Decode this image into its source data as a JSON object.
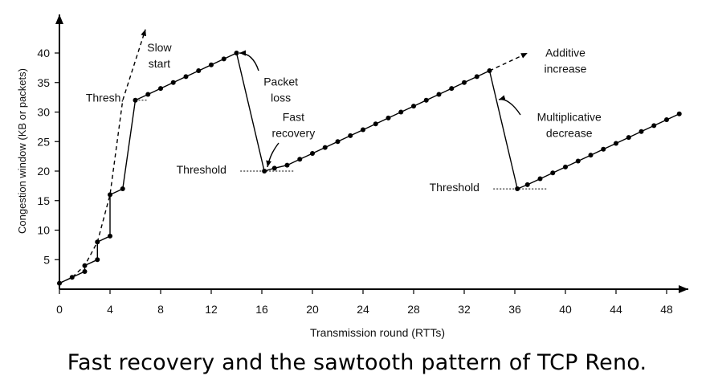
{
  "chart_data": {
    "type": "line",
    "xlabel": "Transmission round (RTTs)",
    "ylabel": "Congestion window  (KB or packets)",
    "xlim": [
      0,
      49
    ],
    "ylim": [
      0,
      42
    ],
    "xticks": [
      0,
      4,
      8,
      12,
      16,
      20,
      24,
      28,
      32,
      36,
      40,
      44,
      48
    ],
    "yticks": [
      5,
      10,
      15,
      20,
      25,
      30,
      35,
      40
    ],
    "series": [
      {
        "style": "solid-with-dots",
        "points": [
          [
            0,
            1
          ],
          [
            1,
            2
          ],
          [
            2,
            3
          ],
          [
            2,
            4
          ],
          [
            3,
            5
          ],
          [
            3,
            8
          ],
          [
            4,
            9
          ],
          [
            4,
            16
          ],
          [
            5,
            17
          ],
          [
            6,
            32
          ],
          [
            7,
            33
          ],
          [
            8,
            34
          ],
          [
            9,
            35
          ],
          [
            10,
            36
          ],
          [
            11,
            37
          ],
          [
            12,
            38
          ],
          [
            13,
            39
          ],
          [
            14,
            40
          ],
          [
            16.2,
            20
          ],
          [
            17,
            20.5
          ],
          [
            18,
            21
          ],
          [
            19,
            22
          ],
          [
            20,
            23
          ],
          [
            21,
            24
          ],
          [
            22,
            25
          ],
          [
            23,
            26
          ],
          [
            24,
            27
          ],
          [
            25,
            28
          ],
          [
            26,
            29
          ],
          [
            27,
            30
          ],
          [
            28,
            31
          ],
          [
            29,
            32
          ],
          [
            30,
            33
          ],
          [
            31,
            34
          ],
          [
            32,
            35
          ],
          [
            33,
            36
          ],
          [
            34,
            37
          ],
          [
            36.2,
            17
          ],
          [
            37,
            17.7
          ],
          [
            38,
            18.7
          ],
          [
            39,
            19.7
          ],
          [
            40,
            20.7
          ],
          [
            41,
            21.7
          ],
          [
            42,
            22.7
          ],
          [
            43,
            23.7
          ],
          [
            44,
            24.7
          ],
          [
            45,
            25.7
          ],
          [
            46,
            26.7
          ],
          [
            47,
            27.7
          ],
          [
            48,
            28.7
          ],
          [
            49,
            29.7
          ]
        ]
      },
      {
        "style": "dashed",
        "points": [
          [
            0,
            1
          ],
          [
            1,
            2
          ],
          [
            2,
            4
          ],
          [
            3,
            8
          ],
          [
            4,
            16
          ],
          [
            5,
            32
          ],
          [
            6.8,
            44
          ]
        ]
      },
      {
        "style": "dashed",
        "points": [
          [
            34,
            37
          ],
          [
            37,
            40
          ]
        ]
      },
      {
        "style": "dotted-threshold",
        "points": [
          [
            6,
            32
          ],
          [
            7,
            32
          ]
        ]
      },
      {
        "style": "dotted-threshold",
        "points": [
          [
            14.3,
            20
          ],
          [
            18.6,
            20
          ]
        ]
      },
      {
        "style": "dotted-threshold",
        "points": [
          [
            34.3,
            17
          ],
          [
            38.6,
            17
          ]
        ]
      }
    ],
    "annotations": [
      {
        "text": "Slow\nstart",
        "x": 7.9,
        "y": 40.3
      },
      {
        "text": "Packet\nloss",
        "x": 17.5,
        "y": 34.5
      },
      {
        "text": "Fast\nrecovery",
        "x": 18.5,
        "y": 28.5
      },
      {
        "text": "Additive\nincrease",
        "x": 40,
        "y": 39.4
      },
      {
        "text": "Multiplicative\ndecrease",
        "x": 40.3,
        "y": 28.5
      },
      {
        "text": "Thresh.",
        "x": 5.1,
        "y": 31.8
      },
      {
        "text": "Threshold",
        "x": 13.2,
        "y": 19.6
      },
      {
        "text": "Threshold",
        "x": 33.2,
        "y": 16.6
      }
    ]
  },
  "caption": "Fast recovery and the sawtooth pattern of TCP Reno."
}
